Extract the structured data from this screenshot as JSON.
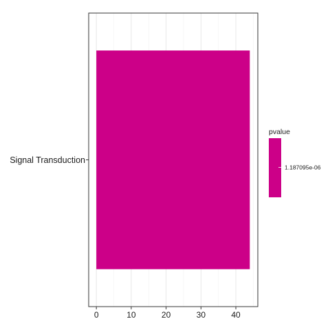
{
  "chart_data": {
    "type": "bar",
    "orientation": "horizontal",
    "categories": [
      "Signal Transduction"
    ],
    "values": [
      44
    ],
    "xlim": [
      -2.2,
      46.3
    ],
    "xticks": [
      0,
      10,
      20,
      30,
      40
    ],
    "grid": true,
    "bar_color": "#cc0088",
    "legend": {
      "title": "pvalue",
      "position": "right",
      "label": "1.187095e-06"
    }
  }
}
